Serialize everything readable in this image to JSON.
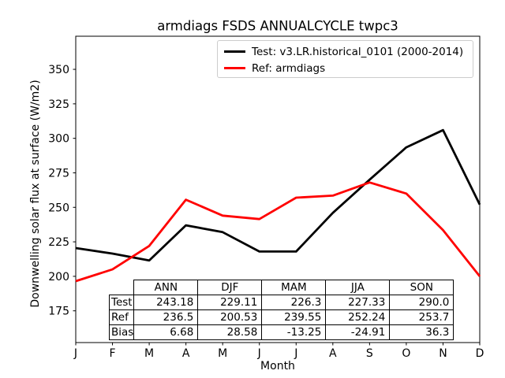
{
  "chart_data": {
    "type": "line",
    "title": "armdiags FSDS ANNUALCYCLE twpc3",
    "xlabel": "Month",
    "ylabel": "Downwelling solar flux at surface (W/m2)",
    "x_tick_labels": [
      "J",
      "F",
      "M",
      "A",
      "M",
      "J",
      "J",
      "A",
      "S",
      "O",
      "N",
      "D"
    ],
    "y_ticks": [
      175,
      200,
      225,
      250,
      275,
      300,
      325,
      350
    ],
    "ylim": [
      152,
      374
    ],
    "xlim": [
      0,
      11
    ],
    "grid": false,
    "legend_position": "upper right",
    "series": [
      {
        "name": "Test",
        "label": "Test: v3.LR.historical_0101 (2000-2014)",
        "color": "#000000",
        "values": [
          220.5,
          216.5,
          211.5,
          237,
          232,
          218,
          218,
          246,
          270,
          293.5,
          306,
          252
        ]
      },
      {
        "name": "Ref",
        "label": "Ref: armdiags",
        "color": "#ff0000",
        "values": [
          196.5,
          205,
          222,
          255.5,
          244,
          241.5,
          257,
          258.5,
          268,
          260,
          233.5,
          200
        ]
      }
    ],
    "table": {
      "columns": [
        "ANN",
        "DJF",
        "MAM",
        "JJA",
        "SON"
      ],
      "rows": [
        {
          "label": "Test",
          "values": [
            "243.18",
            "229.11",
            "226.3",
            "227.33",
            "290.0"
          ]
        },
        {
          "label": "Ref",
          "values": [
            "236.5",
            "200.53",
            "239.55",
            "252.24",
            "253.7"
          ]
        },
        {
          "label": "Bias",
          "values": [
            "6.68",
            "28.58",
            "-13.25",
            "-24.91",
            "36.3"
          ]
        }
      ]
    }
  }
}
